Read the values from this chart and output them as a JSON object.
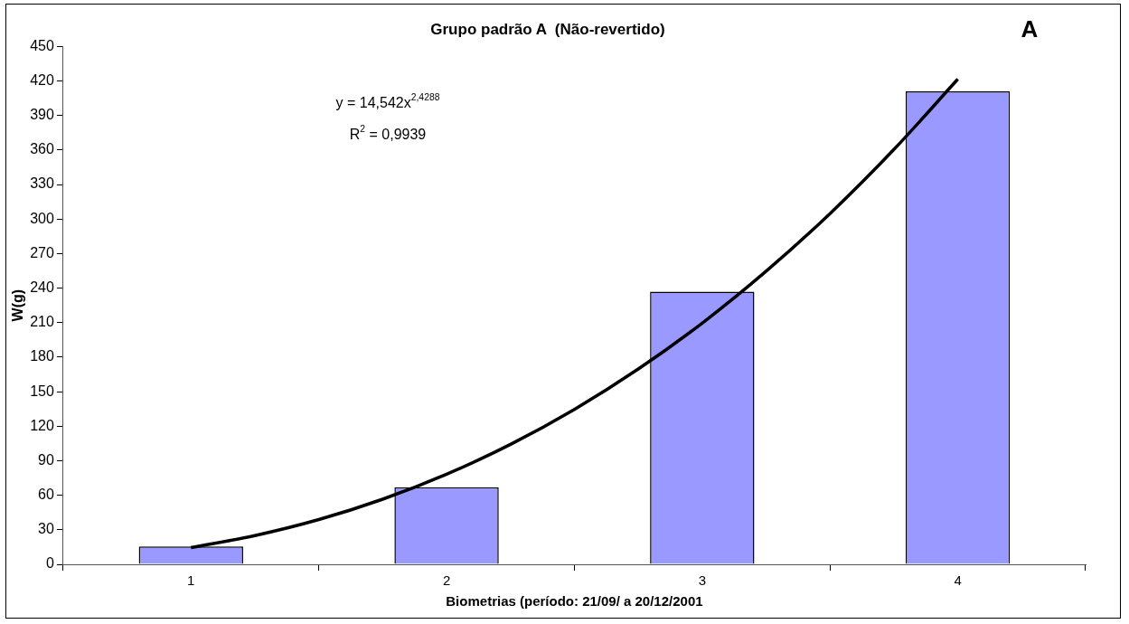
{
  "chart_data": {
    "type": "bar",
    "title": "Grupo padrão A  (Não-revertido)",
    "xlabel": "Biometrias (período: 21/09/ a 20/12/2001",
    "ylabel": "W(g)",
    "x": [
      1,
      2,
      3,
      4
    ],
    "series": [
      {
        "color": "#9999ff",
        "values": [
          15.5,
          67,
          237,
          411
        ]
      },
      {
        "type": "line",
        "color": "#000000",
        "x": [
          1,
          1.25,
          1.5,
          1.75,
          2,
          2.25,
          2.5,
          2.75,
          3,
          3.25,
          3.5,
          3.75,
          4
        ],
        "values": [
          14.5,
          25,
          38.9,
          56.6,
          78.3,
          104.2,
          134.6,
          169.7,
          209.6,
          254.7,
          304.8,
          360.5,
          421.6
        ]
      }
    ],
    "xlim": [
      0.5,
      4.5
    ],
    "xticks": [
      1,
      2,
      3,
      4
    ],
    "ylim": [
      0,
      450
    ],
    "yticks": [
      0,
      30,
      60,
      90,
      120,
      150,
      180,
      210,
      240,
      270,
      300,
      330,
      360,
      390,
      420,
      450
    ],
    "grid": false,
    "legend": false,
    "marker": "none",
    "annotations": [
      "A",
      "y = 14,542x$^{2,4288}$",
      "R$^{2}$ = 0,9939"
    ]
  }
}
